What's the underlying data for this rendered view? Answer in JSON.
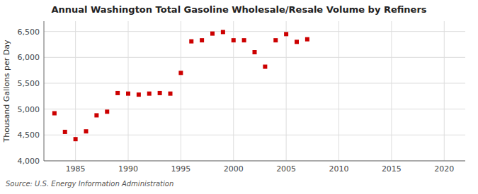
{
  "chart_data": {
    "type": "scatter",
    "title": "Annual Washington Total Gasoline Wholesale/Resale Volume by Refiners",
    "ylabel": "Thousand Gallons per Day",
    "annotations": [
      "Source: U.S. Energy Information Administration"
    ],
    "x": [
      1983,
      1984,
      1985,
      1986,
      1987,
      1988,
      1989,
      1990,
      1991,
      1992,
      1993,
      1994,
      1995,
      1996,
      1997,
      1998,
      1999,
      2000,
      2001,
      2002,
      2003,
      2004,
      2005,
      2006,
      2007
    ],
    "values": [
      4920,
      4560,
      4420,
      4570,
      4880,
      4950,
      5310,
      5300,
      5280,
      5300,
      5310,
      5300,
      5700,
      6310,
      6330,
      6460,
      6490,
      6330,
      6330,
      6100,
      5820,
      6330,
      6450,
      6300,
      6350
    ],
    "color": "#cc0000",
    "marker": "square",
    "xlim": [
      1982,
      2022
    ],
    "ylim": [
      4000,
      6700
    ],
    "xticks": [
      1985,
      1990,
      1995,
      2000,
      2005,
      2010,
      2015,
      2020
    ],
    "yticks": [
      {
        "value": 4000,
        "label": "4,000"
      },
      {
        "value": 4500,
        "label": "4,500"
      },
      {
        "value": 5000,
        "label": "5,000"
      },
      {
        "value": 5500,
        "label": "5,500"
      },
      {
        "value": 6000,
        "label": "6,000"
      },
      {
        "value": 6500,
        "label": "6,500"
      }
    ],
    "grid": true
  }
}
